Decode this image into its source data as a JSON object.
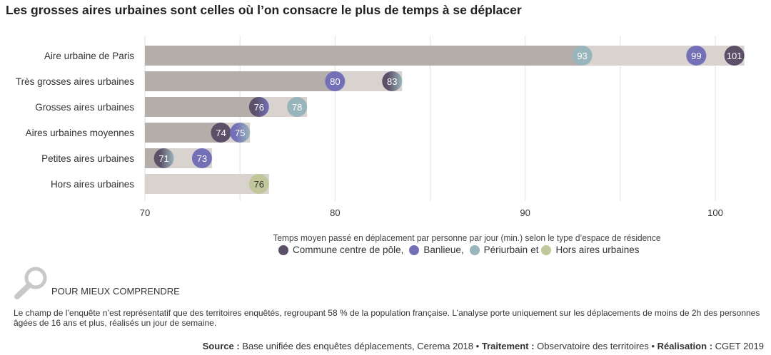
{
  "title": "Les grosses aires urbaines sont celles où l’on consacre le plus de temps à se déplacer",
  "chart_data": {
    "type": "bar",
    "categories": [
      "Aire urbaine de Paris",
      "Très grosses aires urbaines",
      "Grosses aires urbaines",
      "Aires urbaines moyennes",
      "Petites aires urbaines",
      "Hors aires urbaines"
    ],
    "series": [
      {
        "name": "Commune centre de pôle",
        "color": "#5c5068",
        "values": [
          101,
          83,
          76,
          74,
          71,
          null
        ]
      },
      {
        "name": "Banlieue",
        "color": "#7470b8",
        "values": [
          99,
          80,
          76,
          75,
          73,
          null
        ]
      },
      {
        "name": "Périurbain",
        "color": "#98b5bb",
        "values": [
          93,
          83,
          78,
          75,
          71,
          null
        ]
      },
      {
        "name": "Hors aires urbaines",
        "color": "#c1c79a",
        "values": [
          null,
          null,
          null,
          null,
          null,
          76
        ]
      }
    ],
    "xlim": [
      70,
      101.5
    ],
    "xticks": [
      70,
      80,
      90,
      100
    ],
    "grid_lines": [
      70,
      75,
      80,
      85,
      90,
      95,
      100
    ],
    "grid": true,
    "xlabel": "Temps moyen passé en déplacement par personne par jour (min.) selon le type d’espace de résidence",
    "bar_colors": {
      "base": "#b3aeaa",
      "range": "#d8d3cf"
    },
    "legend_placement": "bottom"
  },
  "legend": {
    "items": [
      "Commune centre de pôle,",
      "Banlieue,",
      "Périurbain",
      "et",
      "Hors aires urbaines"
    ]
  },
  "pmc": {
    "icon": "magnifier-icon",
    "label": "POUR MIEUX COMPRENDRE"
  },
  "note": "Le champ de l’enquête n’est représentatif que des territoires enquêtés, regroupant 58 % de la population française. L’analyse porte uniquement sur les déplacements de moins de 2h des personnes âgées de 16 ans et plus, réalisés un jour de semaine.",
  "source": {
    "k1": "Source :",
    "v1": " Base unifiée des enquêtes déplacements, Cerema 2018 • ",
    "k2": "Traitement :",
    "v2": " Observatoire des territoires • ",
    "k3": "Réalisation :",
    "v3": " CGET 2019"
  }
}
